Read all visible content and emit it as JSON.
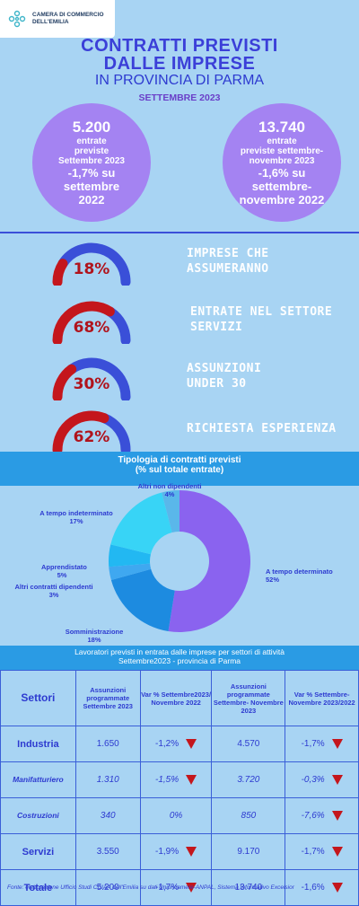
{
  "header": {
    "logo_line1": "CAMERA DI COMMERCIO",
    "logo_line2": "DELL'EMILIA",
    "title_line1": "CONTRATTI PREVISTI",
    "title_line2": "DALLE IMPRESE",
    "title_line3": "IN PROVINCIA DI PARMA",
    "period": "SETTEMBRE 2023"
  },
  "circles": {
    "left": {
      "value": "5.200",
      "line1": "entrate",
      "line2": "previste",
      "line3": "Settembre 2023",
      "var1": "-1,7% su",
      "var2": "settembre",
      "var3": "2022"
    },
    "right": {
      "value": "13.740",
      "line1": "entrate",
      "line2": "previste settembre-",
      "line3": "novembre 2023",
      "var1": "-1,6% su",
      "var2": "settembre-",
      "var3": "novembre 2022"
    }
  },
  "gauges": [
    {
      "pct_label": "18%",
      "pct": 0.18,
      "label1": "IMPRESE CHE",
      "label2": "ASSUMERANNO"
    },
    {
      "pct_label": "68%",
      "pct": 0.68,
      "label1": "ENTRATE NEL SETTORE",
      "label2": "SERVIZI"
    },
    {
      "pct_label": "30%",
      "pct": 0.3,
      "label1": "ASSUNZIONI",
      "label2": "UNDER 30"
    },
    {
      "pct_label": "62%",
      "pct": 0.62,
      "label1": "RICHIESTA ESPERIENZA",
      "label2": ""
    }
  ],
  "colors": {
    "gauge_red": "#c4161c",
    "gauge_blue": "#3a4fd8",
    "donut_main": "#8a63ef"
  },
  "chart_data": {
    "type": "pie",
    "title": "Tipologia di contratti previsti",
    "subtitle": "(% sul totale entrate)",
    "slices": [
      {
        "name": "A tempo determinato",
        "value": 52,
        "label": "52%",
        "color": "#8a63ef"
      },
      {
        "name": "Somministrazione",
        "value": 18,
        "label": "18%",
        "color": "#1d8be0"
      },
      {
        "name": "Altri contratti dipendenti",
        "value": 3,
        "label": "3%",
        "color": "#3fa8f0"
      },
      {
        "name": "Apprendistato",
        "value": 5,
        "label": "5%",
        "color": "#22b8f2"
      },
      {
        "name": "A tempo indeterminato",
        "value": 17,
        "label": "17%",
        "color": "#38d4f6"
      },
      {
        "name": "Altri non dipendenti",
        "value": 4,
        "label": "4%",
        "color": "#5ab7ea"
      }
    ]
  },
  "table": {
    "title1": "Lavoratori previsti in entrata dalle imprese per settori di attività",
    "title2": "Settembre2023 - provincia di Parma",
    "headers": {
      "sector": "Settori",
      "col1": "Assunzioni programmate Settembre 2023",
      "col2": "Var % Settembre2023/ Novembre 2022",
      "col3": "Assunzioni programmate Settembre- Novembre 2023",
      "col4": "Var % Settembre- Novembre 2023/2022"
    },
    "rows": [
      {
        "sector": "Industria",
        "v1": "1.650",
        "var1": "-1,2%",
        "down1": true,
        "v2": "4.570",
        "var2": "-1,7%",
        "down2": true,
        "italic": false
      },
      {
        "sector": "Manifatturiero",
        "v1": "1.310",
        "var1": "-1,5%",
        "down1": true,
        "v2": "3.720",
        "var2": "-0,3%",
        "down2": true,
        "italic": true
      },
      {
        "sector": "Costruzioni",
        "v1": "340",
        "var1": "0%",
        "down1": false,
        "v2": "850",
        "var2": "-7,6%",
        "down2": true,
        "italic": true
      },
      {
        "sector": "Servizi",
        "v1": "3.550",
        "var1": "-1,9%",
        "down1": true,
        "v2": "9.170",
        "var2": "-1,7%",
        "down2": true,
        "italic": false
      },
      {
        "sector": "Totale",
        "v1": "5.200",
        "var1": "-1,7%",
        "down1": true,
        "v2": "13.740",
        "var2": "-1,6%",
        "down2": true,
        "italic": false
      }
    ]
  },
  "footer": "Fonte: elaborazione Ufficio Studi CCIAA dell'Emilia su dati Unioncamere-ANPAL, Sistema Informativo Excelsior"
}
